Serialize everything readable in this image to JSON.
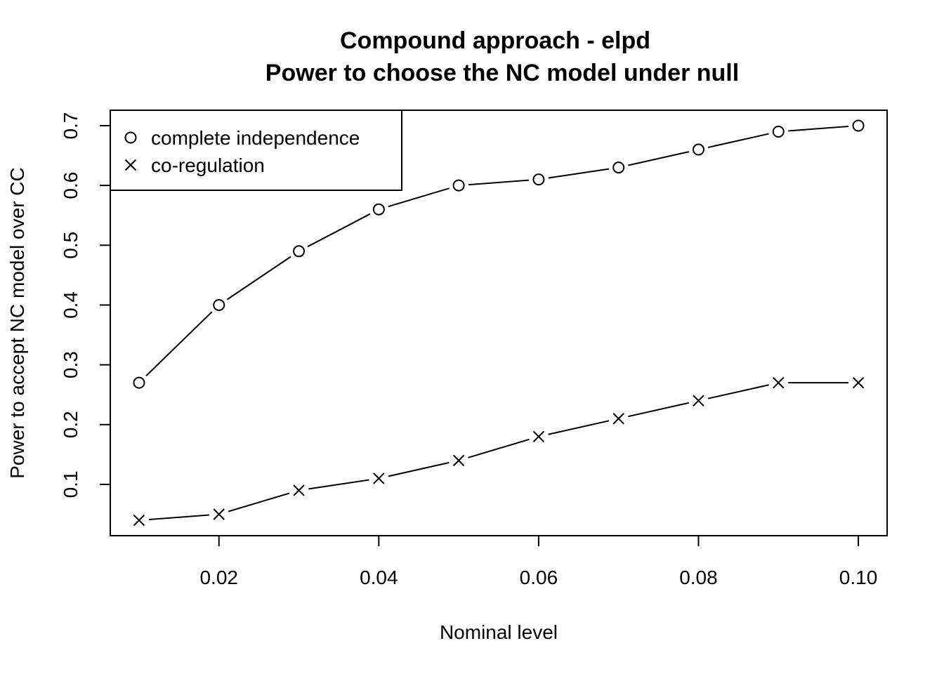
{
  "chart_data": {
    "type": "line",
    "title": "Compound approach - elpd",
    "subtitle": "Power to choose the NC model under null",
    "xlabel": "Nominal level",
    "ylabel": "Power to accept NC model over CC",
    "x": [
      0.01,
      0.02,
      0.03,
      0.04,
      0.05,
      0.06,
      0.07,
      0.08,
      0.09,
      0.1
    ],
    "xlim": [
      0.0064,
      0.1036
    ],
    "ylim": [
      0.0142,
      0.7258
    ],
    "x_ticks": [
      0.02,
      0.04,
      0.06,
      0.08,
      0.1
    ],
    "x_tick_labels": [
      "0.02",
      "0.04",
      "0.06",
      "0.08",
      "0.10"
    ],
    "y_ticks": [
      0.1,
      0.2,
      0.3,
      0.4,
      0.5,
      0.6,
      0.7
    ],
    "y_tick_labels": [
      "0.1",
      "0.2",
      "0.3",
      "0.4",
      "0.5",
      "0.6",
      "0.7"
    ],
    "grid": false,
    "legend_position": "top-left",
    "series": [
      {
        "name": "complete independence",
        "marker": "circle",
        "color": "#000000",
        "values": [
          0.27,
          0.4,
          0.49,
          0.56,
          0.6,
          0.61,
          0.63,
          0.66,
          0.69,
          0.7
        ]
      },
      {
        "name": "co-regulation",
        "marker": "cross",
        "color": "#000000",
        "values": [
          0.04,
          0.05,
          0.09,
          0.11,
          0.14,
          0.18,
          0.21,
          0.24,
          0.27,
          0.27
        ]
      }
    ]
  }
}
